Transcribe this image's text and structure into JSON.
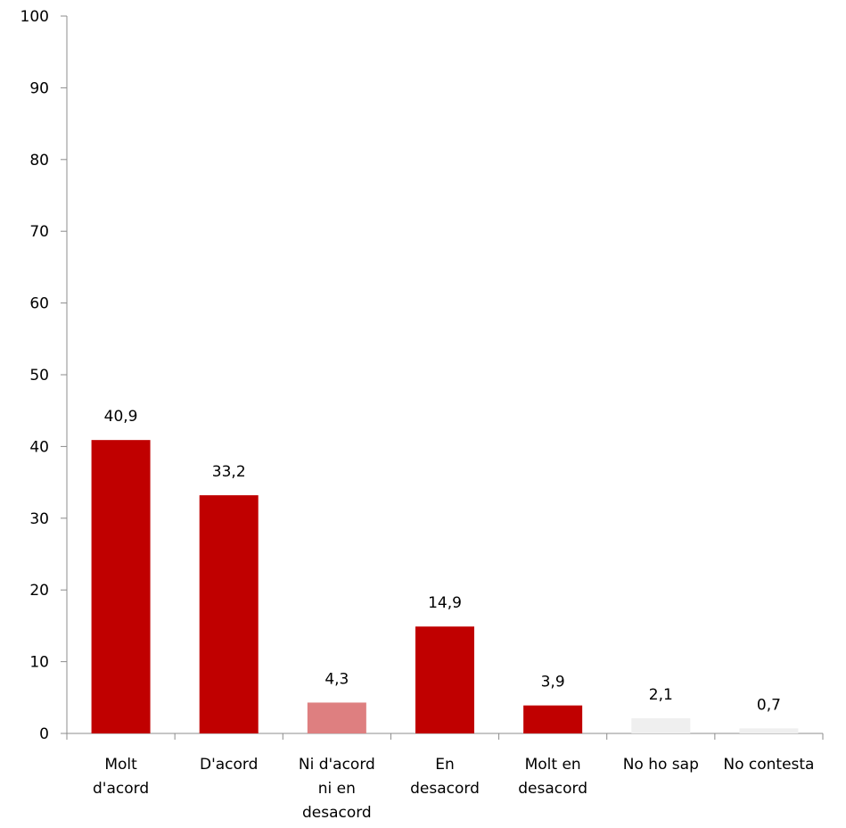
{
  "chart_data": {
    "type": "bar",
    "categories": [
      [
        "Molt",
        "d'acord"
      ],
      [
        "D'acord"
      ],
      [
        "Ni d'acord",
        "ni en",
        "desacord"
      ],
      [
        "En",
        "desacord"
      ],
      [
        "Molt en",
        "desacord"
      ],
      [
        "No ho sap"
      ],
      [
        "No contesta"
      ]
    ],
    "values": [
      40.9,
      33.2,
      4.3,
      14.9,
      3.9,
      2.1,
      0.7
    ],
    "value_labels": [
      "40,9",
      "33,2",
      "4,3",
      "14,9",
      "3,9",
      "2,1",
      "0,7"
    ],
    "bar_colors": [
      "#c00000",
      "#c00000",
      "#de7f80",
      "#c00000",
      "#c00000",
      "#efefef",
      "#efefef"
    ],
    "ylim": [
      0,
      100
    ],
    "yticks": [
      0,
      10,
      20,
      30,
      40,
      50,
      60,
      70,
      80,
      90,
      100
    ],
    "grid": false,
    "legend": "none"
  }
}
